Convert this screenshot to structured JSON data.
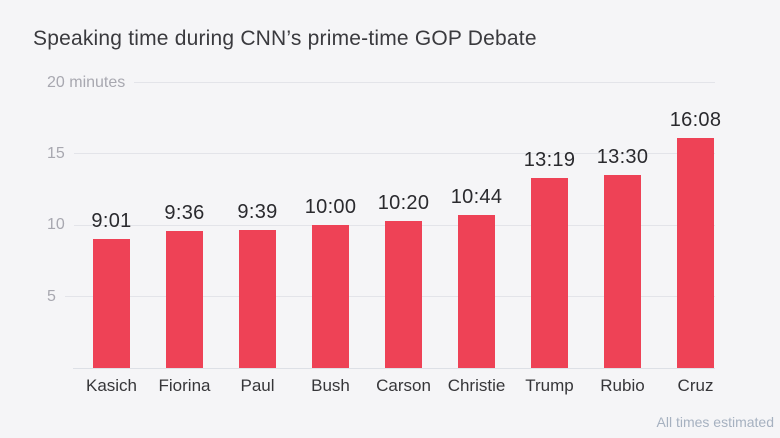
{
  "header": {
    "title": "Speaking time during CNN’s prime-time GOP Debate"
  },
  "footer": {
    "note": "All times estimated"
  },
  "colors": {
    "background": "#f5f5f7",
    "bar": "#ee4256",
    "gridline": "#e3e4e9",
    "title_text": "#3a3a3e",
    "value_label_text": "#2a2a2e",
    "category_label_text": "#363639",
    "tick_label_text": "#a8a8b0",
    "footer_text": "#a6b1c0"
  },
  "chart_data": {
    "type": "bar",
    "title": "Speaking time during CNN’s prime-time GOP Debate",
    "categories": [
      "Kasich",
      "Fiorina",
      "Paul",
      "Bush",
      "Carson",
      "Christie",
      "Trump",
      "Rubio",
      "Cruz"
    ],
    "values": [
      "9:01",
      "9:36",
      "9:39",
      "10:00",
      "10:20",
      "10:44",
      "13:19",
      "13:30",
      "16:08"
    ],
    "values_minutes": [
      9.02,
      9.6,
      9.65,
      10.0,
      10.33,
      10.73,
      13.32,
      13.5,
      16.13
    ],
    "unit": "minutes (mm:ss)",
    "xlabel": "",
    "ylabel": "minutes",
    "ylim": [
      0,
      20
    ],
    "yticks": [
      {
        "label": "20 minutes",
        "value": 20
      },
      {
        "label": "15",
        "value": 15
      },
      {
        "label": "10",
        "value": 10
      },
      {
        "label": "5",
        "value": 5
      }
    ],
    "grid": "horizontal",
    "legend": "none",
    "value_labels_shown": true,
    "annotation": "All times estimated"
  }
}
